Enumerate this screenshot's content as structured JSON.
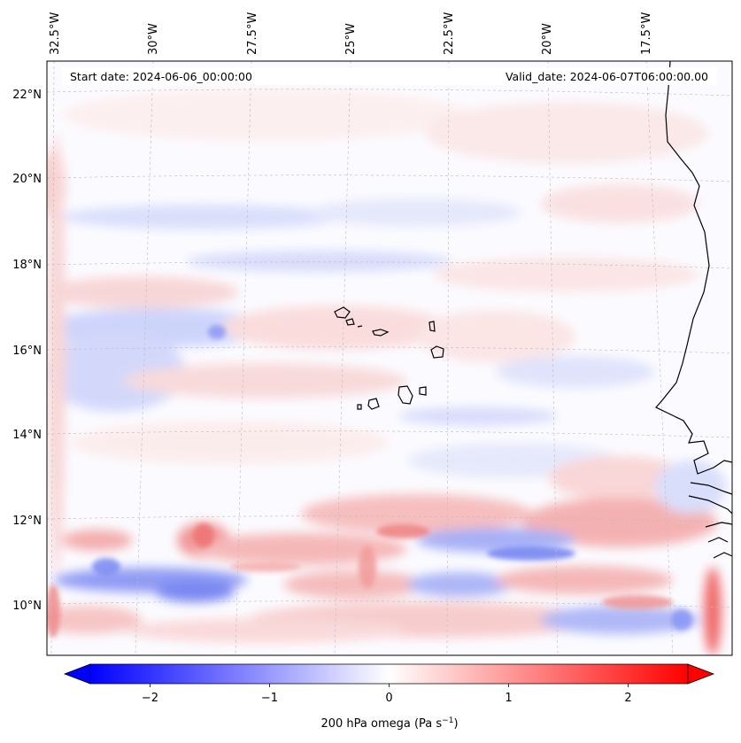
{
  "header": {
    "start_date": "Start date: 2024-06-06_00:00:00",
    "valid_date": "Valid_date: 2024-06-07T06:00:00.00"
  },
  "axes": {
    "lon_ticks": [
      "32.5°W",
      "30°W",
      "27.5°W",
      "25°W",
      "22.5°W",
      "20°W",
      "17.5°W"
    ],
    "lat_ticks": [
      "22°N",
      "20°N",
      "18°N",
      "16°N",
      "14°N",
      "12°N",
      "10°N"
    ]
  },
  "colorbar": {
    "label": "200 hPa omega (Pa s",
    "label_sup": "−1",
    "label_close": ")",
    "ticks": [
      "−2",
      "−1",
      "0",
      "1",
      "2"
    ],
    "tick_values": [
      -2,
      -1,
      0,
      1,
      2
    ],
    "range": [
      -2.5,
      2.5
    ],
    "colors": {
      "low": "#0000ff",
      "mid": "#ffffff",
      "high": "#ff0000"
    }
  },
  "map_colors": {
    "coast": "#000000",
    "grid": "#bbbbbb",
    "background": "#fafaff"
  }
}
